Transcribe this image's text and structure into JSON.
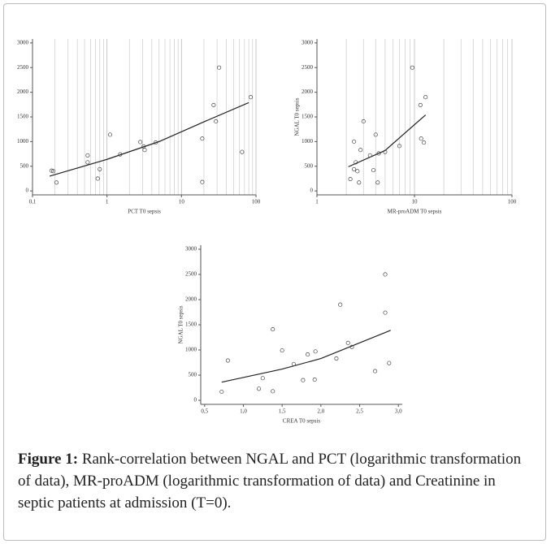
{
  "chart_data": [
    {
      "type": "scatter",
      "x_label": "PCT T0 sepsis",
      "log_x": true,
      "grid": true,
      "color": "#444444",
      "xlim": [
        0.1,
        100
      ],
      "xticks": [
        {
          "value": 0.1,
          "label": "0,1"
        },
        1,
        10,
        100
      ],
      "x_minor_ticks": [
        0.2,
        0.3,
        0.4,
        0.5,
        0.6,
        0.7,
        0.8,
        0.9,
        2,
        3,
        4,
        5,
        6,
        7,
        8,
        9,
        20,
        30,
        40,
        50,
        60,
        70,
        80,
        90
      ],
      "ylim": [
        -80,
        3080
      ],
      "yticks": [
        0,
        500,
        1000,
        1500,
        2000,
        2500,
        3000
      ],
      "points": {
        "x": [
          0.18,
          0.19,
          0.21,
          0.55,
          0.55,
          0.75,
          0.8,
          1.1,
          1.5,
          2.8,
          3.1,
          3.2,
          4.5,
          19,
          19,
          27,
          29,
          32,
          65,
          85
        ],
        "y": [
          410,
          400,
          170,
          720,
          580,
          250,
          440,
          1140,
          740,
          990,
          900,
          830,
          980,
          1060,
          180,
          1740,
          1410,
          2500,
          790,
          1900
        ]
      },
      "fit": {
        "x": [
          0.17,
          1,
          5,
          20,
          80
        ],
        "y": [
          300,
          640,
          1000,
          1400,
          1790
        ]
      }
    },
    {
      "type": "scatter",
      "x_label": "MR-proADM T0 sepsis",
      "y_label": "NGAL T0 sepsis",
      "log_x": true,
      "grid": true,
      "color": "#444444",
      "xlim": [
        1,
        100
      ],
      "xticks": [
        1,
        10,
        100
      ],
      "x_minor_ticks": [
        2,
        3,
        4,
        5,
        6,
        7,
        8,
        9,
        20,
        30,
        40,
        50,
        60,
        70,
        80,
        90
      ],
      "ylim": [
        -80,
        3080
      ],
      "yticks": [
        0,
        500,
        1000,
        1500,
        2000,
        2500,
        3000
      ],
      "points": {
        "x": [
          2.2,
          2.4,
          2.4,
          2.5,
          2.6,
          2.7,
          2.8,
          3.0,
          3.5,
          3.8,
          4.0,
          4.2,
          4.3,
          5,
          7,
          9.5,
          11.5,
          11.7,
          12.5,
          13
        ],
        "y": [
          240,
          440,
          1000,
          580,
          400,
          170,
          830,
          1410,
          720,
          420,
          1140,
          170,
          760,
          790,
          910,
          2500,
          1740,
          1060,
          980,
          1900
        ]
      },
      "fit": {
        "x": [
          2.1,
          5,
          13
        ],
        "y": [
          490,
          820,
          1540
        ]
      }
    },
    {
      "type": "scatter",
      "x_label": "CREA T0 sepsis",
      "y_label": "NGAL T0 sepsis",
      "log_x": false,
      "grid": false,
      "color": "#444444",
      "xlim": [
        0.45,
        3.05
      ],
      "xticks": [
        {
          "value": 0.5,
          "label": "0,5"
        },
        {
          "value": 1.0,
          "label": "1,0"
        },
        {
          "value": 1.5,
          "label": "1,5"
        },
        {
          "value": 2.0,
          "label": "2,0"
        },
        {
          "value": 2.5,
          "label": "2,5"
        },
        {
          "value": 3.0,
          "label": "3,0"
        }
      ],
      "ylim": [
        -80,
        3080
      ],
      "yticks": [
        0,
        500,
        1000,
        1500,
        2000,
        2500,
        3000
      ],
      "points": {
        "x": [
          0.72,
          0.8,
          1.2,
          1.25,
          1.38,
          1.38,
          1.5,
          1.65,
          1.77,
          1.83,
          1.92,
          1.93,
          2.2,
          2.25,
          2.35,
          2.4,
          2.7,
          2.83,
          2.83,
          2.88
        ],
        "y": [
          170,
          790,
          230,
          440,
          1410,
          180,
          990,
          720,
          400,
          910,
          410,
          970,
          830,
          1900,
          1140,
          1060,
          580,
          2500,
          1740,
          740
        ]
      },
      "fit": {
        "x": [
          0.72,
          1.5,
          2.0,
          2.9
        ],
        "y": [
          360,
          620,
          830,
          1390
        ]
      }
    }
  ],
  "caption": {
    "label": "Figure 1:",
    "text": "Rank-correlation between NGAL and PCT (logarithmic transformation of data), MR-proADM (logarithmic transformation of data) and Creatinine in septic patients at admission (T=0)."
  }
}
